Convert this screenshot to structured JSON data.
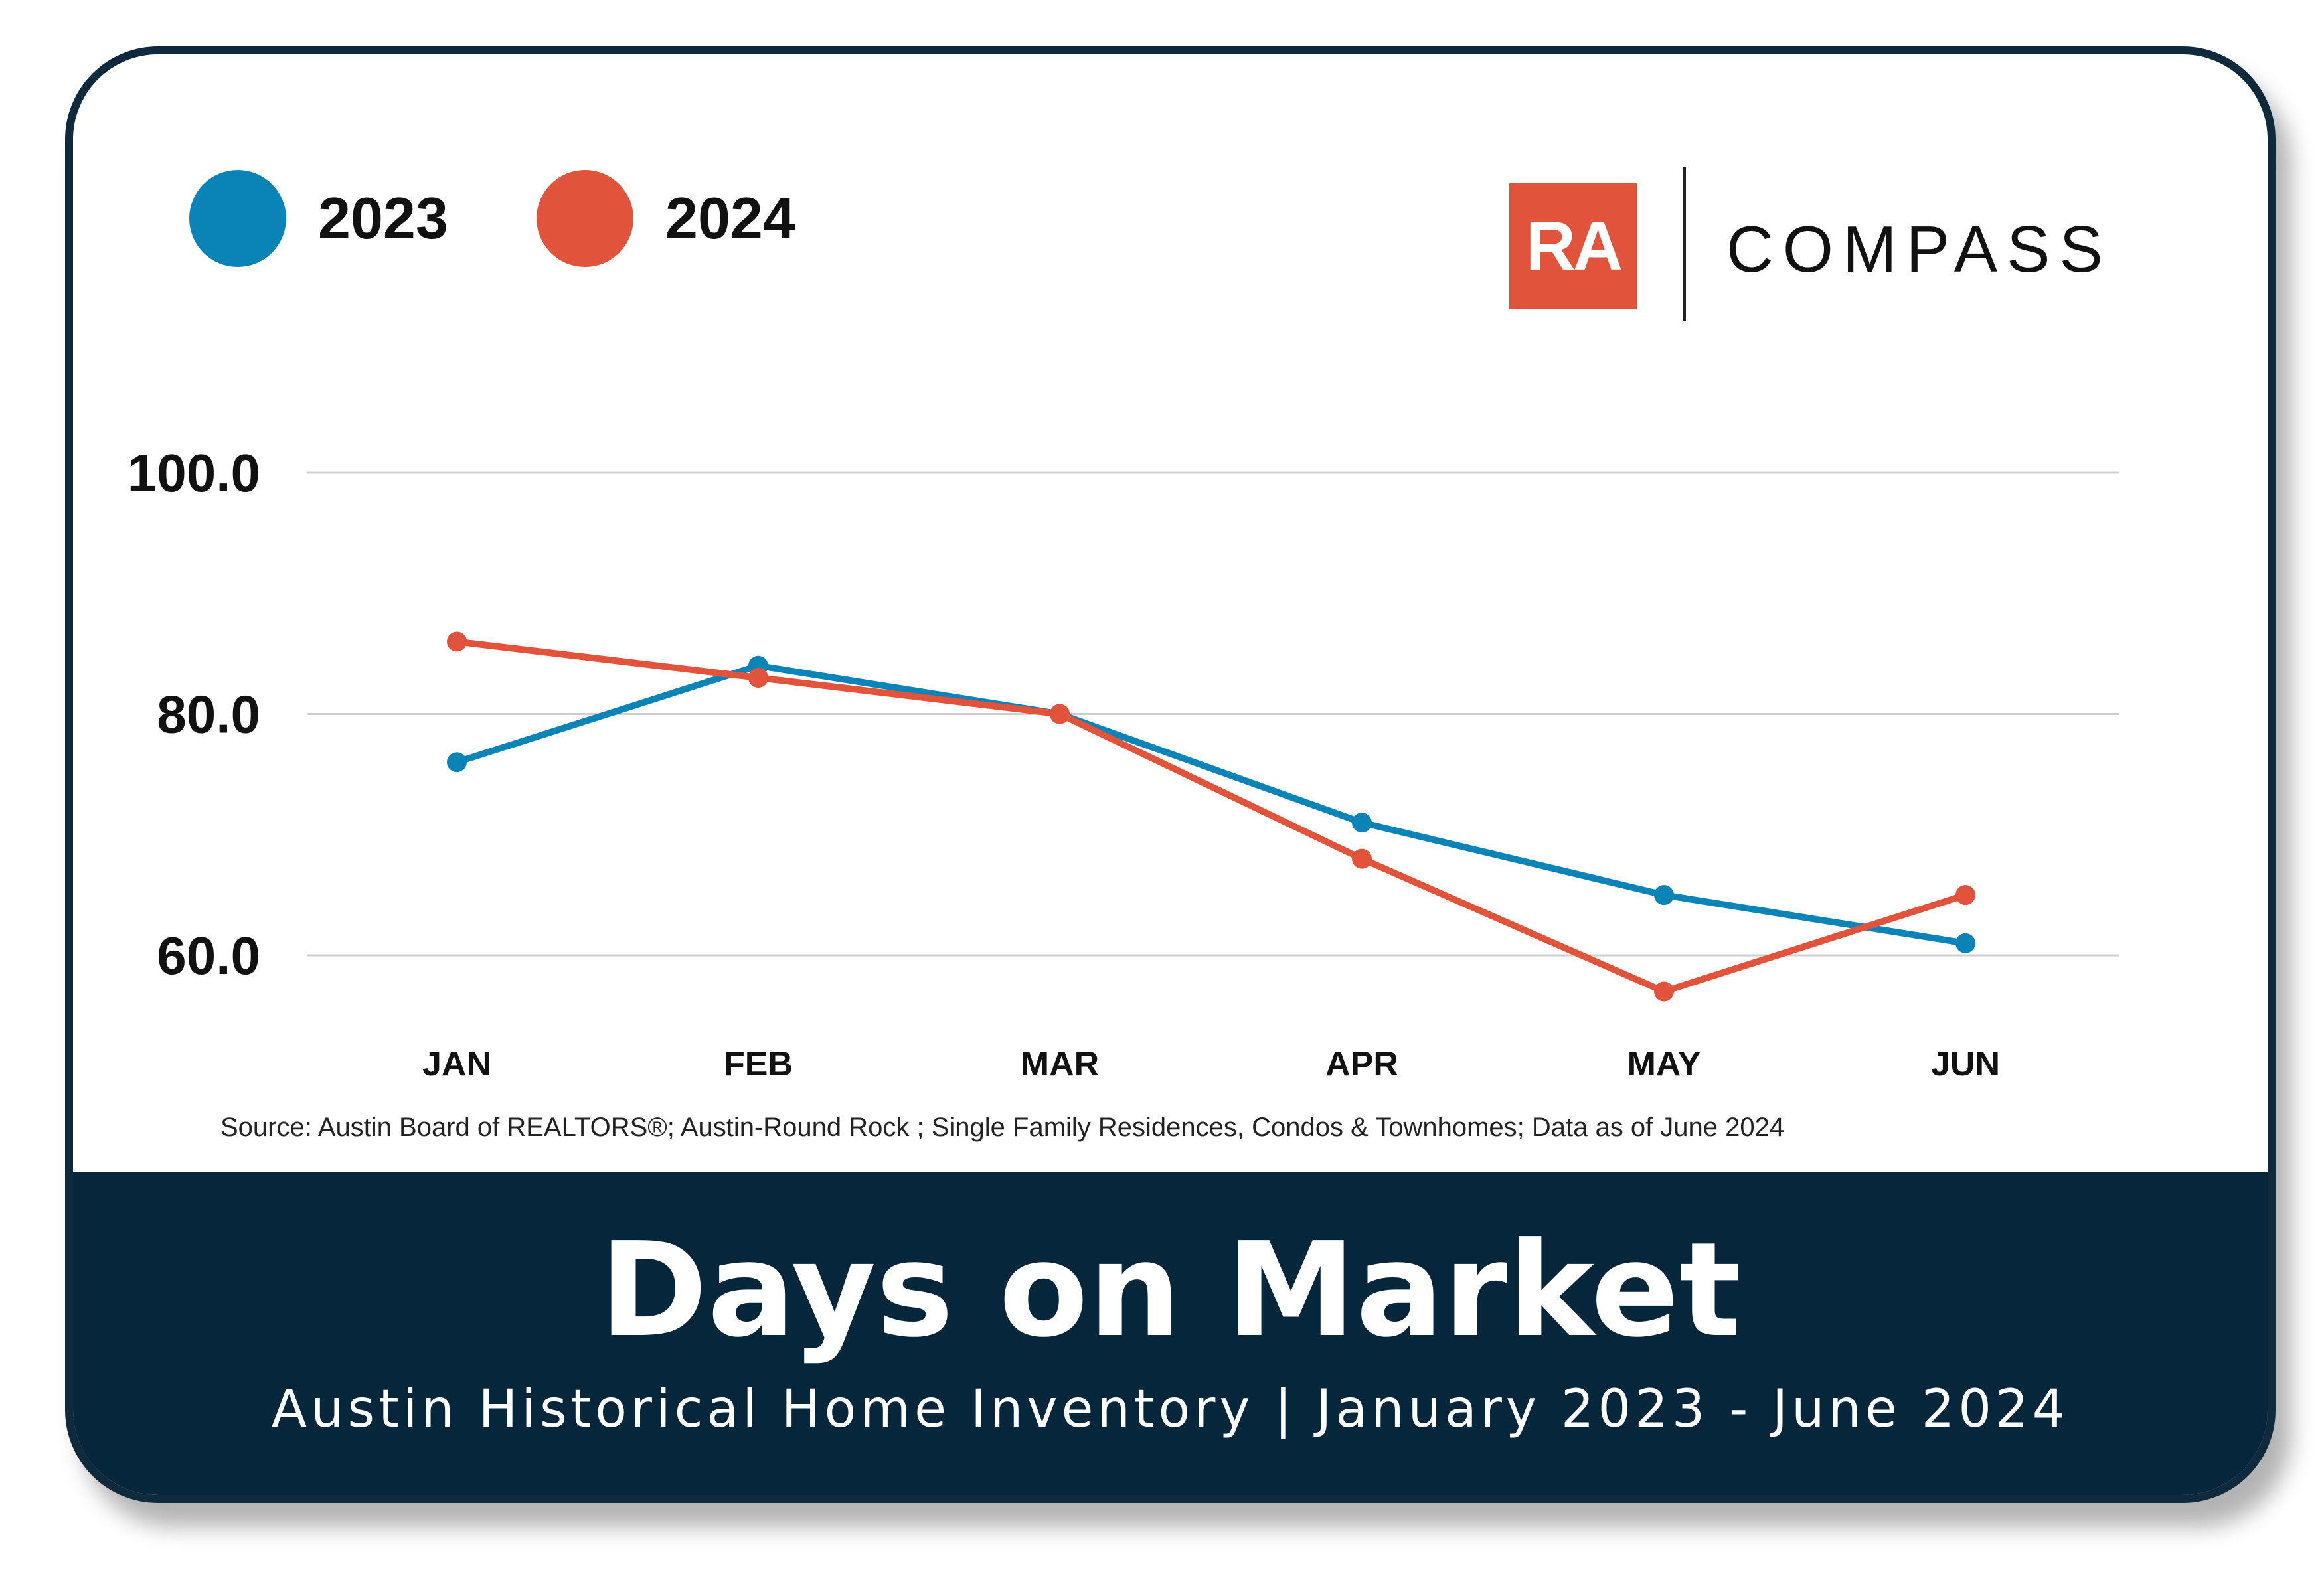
{
  "colors": {
    "series_2023": "#0a84b6",
    "series_2024": "#e2533b",
    "brand_box": "#e2533b",
    "footer_bg": "#05263b",
    "grid": "#d0d0d0"
  },
  "legend": [
    {
      "label": "2023",
      "color": "#0a84b6"
    },
    {
      "label": "2024",
      "color": "#e2533b"
    }
  ],
  "logo": {
    "monogram": "RA",
    "brand_name": "COMPASS"
  },
  "source_note": "Source: Austin Board of REALTORS®; Austin-Round Rock ; Single Family Residences, Condos & Townhomes; Data as of June 2024",
  "footer": {
    "title": "Days on Market",
    "subtitle": "Austin Historical Home Inventory | January 2023 - June 2024"
  },
  "chart_data": {
    "type": "line",
    "title": "Days on Market",
    "subtitle": "Austin Historical Home Inventory | January 2023 - June 2024",
    "xlabel": "",
    "ylabel": "",
    "categories": [
      "JAN",
      "FEB",
      "MAR",
      "APR",
      "MAY",
      "JUN"
    ],
    "yticks": [
      "100.0",
      "80.0",
      "60.0"
    ],
    "ylim": [
      60,
      100
    ],
    "grid": true,
    "legend_position": "top-left",
    "series": [
      {
        "name": "2023",
        "color": "#0a84b6",
        "values": [
          76,
          84,
          80,
          71,
          65,
          61
        ]
      },
      {
        "name": "2024",
        "color": "#e2533b",
        "values": [
          86,
          83,
          80,
          68,
          57,
          65
        ]
      }
    ]
  }
}
